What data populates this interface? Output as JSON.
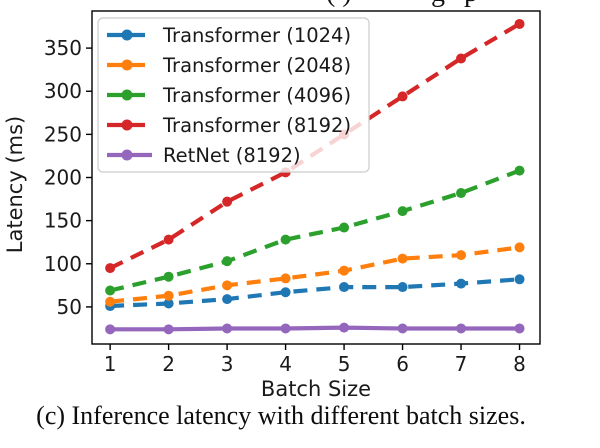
{
  "top_fragment": {
    "left_text": "( )",
    "right_text": "g p"
  },
  "caption": {
    "text": "(c) Inference latency with different batch sizes."
  },
  "chart_data": {
    "type": "line",
    "title": "",
    "xlabel": "Batch Size",
    "ylabel": "Latency (ms)",
    "x": [
      1,
      2,
      3,
      4,
      5,
      6,
      7,
      8
    ],
    "x_tick_labels": [
      "1",
      "2",
      "3",
      "4",
      "5",
      "6",
      "7",
      "8"
    ],
    "y_ticks": [
      50,
      100,
      150,
      200,
      250,
      300,
      350
    ],
    "xlim": [
      0.69,
      8.35
    ],
    "ylim": [
      7,
      393
    ],
    "grid": false,
    "legend_position": "upper left",
    "legend_framealpha": 0.8,
    "axis_color": "#000000",
    "tick_label_color": "#1a1a1a",
    "series": [
      {
        "name": "Transformer (1024)",
        "color": "#1f77b4",
        "linestyle": "dashed",
        "marker": "circle",
        "values": [
          51,
          54,
          59,
          67,
          73,
          73,
          77,
          82
        ]
      },
      {
        "name": "Transformer (2048)",
        "color": "#ff7f0e",
        "linestyle": "dashed",
        "marker": "circle",
        "values": [
          56,
          63,
          75,
          83,
          92,
          106,
          110,
          119
        ]
      },
      {
        "name": "Transformer (4096)",
        "color": "#2ca02c",
        "linestyle": "dashed",
        "marker": "circle",
        "values": [
          69,
          85,
          103,
          128,
          142,
          161,
          182,
          208
        ]
      },
      {
        "name": "Transformer (8192)",
        "color": "#d62728",
        "linestyle": "dashed",
        "marker": "circle",
        "values": [
          95,
          128,
          172,
          206,
          250,
          294,
          338,
          378
        ]
      },
      {
        "name": "RetNet (8192)",
        "color": "#9467bd",
        "linestyle": "solid",
        "marker": "circle",
        "values": [
          24,
          24,
          25,
          25,
          26,
          25,
          25,
          25
        ]
      }
    ]
  }
}
